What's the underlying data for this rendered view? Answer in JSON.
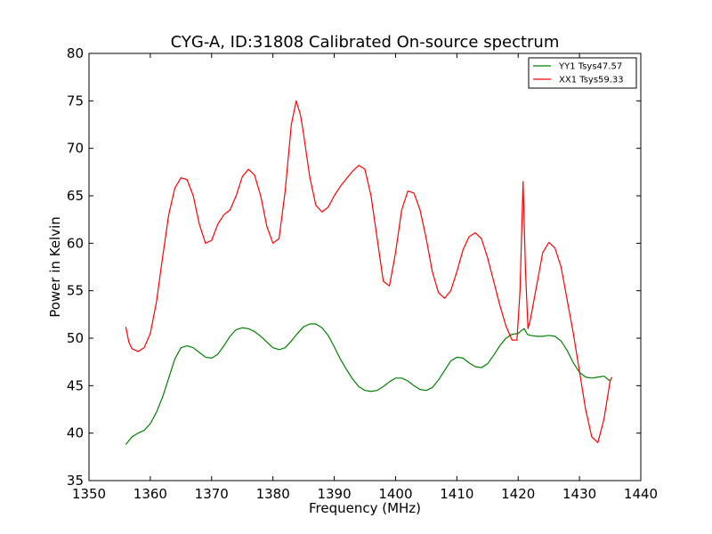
{
  "chart_data": {
    "type": "line",
    "title": "CYG-A, ID:31808 Calibrated On-source spectrum",
    "xlabel": "Frequency (MHz)",
    "ylabel": "Power in Kelvin",
    "xlim": [
      1350,
      1440
    ],
    "ylim": [
      35,
      80
    ],
    "xticks": [
      1350,
      1360,
      1370,
      1380,
      1390,
      1400,
      1410,
      1420,
      1430,
      1440
    ],
    "yticks": [
      35,
      40,
      45,
      50,
      55,
      60,
      65,
      70,
      75,
      80
    ],
    "grid": false,
    "legend_placement": "top-right",
    "series": [
      {
        "name": "YY1 Tsys47.57",
        "color": "#008000",
        "points": [
          [
            1356,
            38.8
          ],
          [
            1357,
            39.6
          ],
          [
            1358,
            40.0
          ],
          [
            1359,
            40.3
          ],
          [
            1360,
            41.0
          ],
          [
            1361,
            42.2
          ],
          [
            1362,
            43.8
          ],
          [
            1363,
            45.8
          ],
          [
            1364,
            47.8
          ],
          [
            1365,
            49.0
          ],
          [
            1366,
            49.2
          ],
          [
            1367,
            49.0
          ],
          [
            1368,
            48.5
          ],
          [
            1369,
            48.0
          ],
          [
            1370,
            47.9
          ],
          [
            1371,
            48.3
          ],
          [
            1372,
            49.2
          ],
          [
            1373,
            50.2
          ],
          [
            1374,
            50.9
          ],
          [
            1375,
            51.1
          ],
          [
            1376,
            51.0
          ],
          [
            1377,
            50.7
          ],
          [
            1378,
            50.2
          ],
          [
            1379,
            49.6
          ],
          [
            1380,
            49.0
          ],
          [
            1381,
            48.8
          ],
          [
            1382,
            49.0
          ],
          [
            1383,
            49.7
          ],
          [
            1384,
            50.5
          ],
          [
            1385,
            51.2
          ],
          [
            1386,
            51.5
          ],
          [
            1387,
            51.5
          ],
          [
            1388,
            51.1
          ],
          [
            1389,
            50.3
          ],
          [
            1390,
            49.1
          ],
          [
            1391,
            47.8
          ],
          [
            1392,
            46.7
          ],
          [
            1393,
            45.7
          ],
          [
            1394,
            44.9
          ],
          [
            1395,
            44.5
          ],
          [
            1396,
            44.4
          ],
          [
            1397,
            44.5
          ],
          [
            1398,
            44.9
          ],
          [
            1399,
            45.4
          ],
          [
            1400,
            45.8
          ],
          [
            1401,
            45.8
          ],
          [
            1402,
            45.5
          ],
          [
            1403,
            45.0
          ],
          [
            1404,
            44.6
          ],
          [
            1405,
            44.5
          ],
          [
            1406,
            44.8
          ],
          [
            1407,
            45.6
          ],
          [
            1408,
            46.6
          ],
          [
            1409,
            47.6
          ],
          [
            1410,
            48.0
          ],
          [
            1411,
            47.9
          ],
          [
            1412,
            47.4
          ],
          [
            1413,
            47.0
          ],
          [
            1414,
            46.9
          ],
          [
            1415,
            47.3
          ],
          [
            1416,
            48.2
          ],
          [
            1417,
            49.2
          ],
          [
            1418,
            50.0
          ],
          [
            1419,
            50.4
          ],
          [
            1420,
            50.5
          ],
          [
            1420.5,
            50.8
          ],
          [
            1421,
            51.0
          ],
          [
            1421.5,
            50.4
          ],
          [
            1422,
            50.3
          ],
          [
            1423,
            50.2
          ],
          [
            1424,
            50.2
          ],
          [
            1425,
            50.3
          ],
          [
            1426,
            50.2
          ],
          [
            1427,
            49.7
          ],
          [
            1428,
            48.7
          ],
          [
            1429,
            47.4
          ],
          [
            1430,
            46.4
          ],
          [
            1431,
            45.9
          ],
          [
            1432,
            45.8
          ],
          [
            1433,
            45.9
          ],
          [
            1434,
            46.0
          ],
          [
            1435,
            45.5
          ]
        ]
      },
      {
        "name": "XX1 Tsys59.33",
        "color": "#ff0000",
        "points": [
          [
            1356,
            51.2
          ],
          [
            1356.5,
            49.6
          ],
          [
            1357,
            48.9
          ],
          [
            1358,
            48.6
          ],
          [
            1359,
            49.0
          ],
          [
            1360,
            50.5
          ],
          [
            1361,
            53.8
          ],
          [
            1362,
            58.5
          ],
          [
            1363,
            63.0
          ],
          [
            1364,
            65.8
          ],
          [
            1365,
            66.9
          ],
          [
            1366,
            66.7
          ],
          [
            1367,
            65.0
          ],
          [
            1368,
            62.0
          ],
          [
            1369,
            60.0
          ],
          [
            1370,
            60.3
          ],
          [
            1371,
            62.0
          ],
          [
            1372,
            63.0
          ],
          [
            1373,
            63.5
          ],
          [
            1374,
            65.0
          ],
          [
            1375,
            67.0
          ],
          [
            1376,
            67.8
          ],
          [
            1377,
            67.2
          ],
          [
            1378,
            65.0
          ],
          [
            1379,
            61.8
          ],
          [
            1380,
            60.0
          ],
          [
            1381,
            60.5
          ],
          [
            1382,
            65.5
          ],
          [
            1383,
            72.5
          ],
          [
            1383.8,
            75.0
          ],
          [
            1384.5,
            73.5
          ],
          [
            1385,
            71.5
          ],
          [
            1386,
            67.0
          ],
          [
            1387,
            64.0
          ],
          [
            1388,
            63.3
          ],
          [
            1389,
            63.8
          ],
          [
            1390,
            65.0
          ],
          [
            1391,
            66.0
          ],
          [
            1392,
            66.8
          ],
          [
            1393,
            67.6
          ],
          [
            1394,
            68.2
          ],
          [
            1395,
            67.8
          ],
          [
            1396,
            65.0
          ],
          [
            1397,
            60.5
          ],
          [
            1398,
            56.0
          ],
          [
            1399,
            55.5
          ],
          [
            1400,
            59.0
          ],
          [
            1401,
            63.5
          ],
          [
            1402,
            65.5
          ],
          [
            1403,
            65.3
          ],
          [
            1404,
            63.5
          ],
          [
            1405,
            60.5
          ],
          [
            1406,
            57.0
          ],
          [
            1407,
            54.8
          ],
          [
            1408,
            54.2
          ],
          [
            1409,
            55.0
          ],
          [
            1410,
            57.0
          ],
          [
            1411,
            59.3
          ],
          [
            1412,
            60.7
          ],
          [
            1413,
            61.1
          ],
          [
            1414,
            60.5
          ],
          [
            1415,
            58.5
          ],
          [
            1416,
            56.0
          ],
          [
            1417,
            53.5
          ],
          [
            1418,
            51.3
          ],
          [
            1419,
            49.8
          ],
          [
            1419.8,
            49.8
          ],
          [
            1420.3,
            55.0
          ],
          [
            1420.8,
            66.5
          ],
          [
            1421.2,
            57.0
          ],
          [
            1421.6,
            51.0
          ],
          [
            1422,
            52.0
          ],
          [
            1423,
            55.5
          ],
          [
            1424,
            59.0
          ],
          [
            1425,
            60.1
          ],
          [
            1426,
            59.5
          ],
          [
            1427,
            57.5
          ],
          [
            1428,
            54.0
          ],
          [
            1429,
            50.5
          ],
          [
            1430,
            46.5
          ],
          [
            1431,
            42.5
          ],
          [
            1432,
            39.6
          ],
          [
            1433,
            39.0
          ],
          [
            1434,
            41.5
          ],
          [
            1435,
            45.5
          ],
          [
            1435.3,
            45.9
          ]
        ]
      }
    ]
  }
}
